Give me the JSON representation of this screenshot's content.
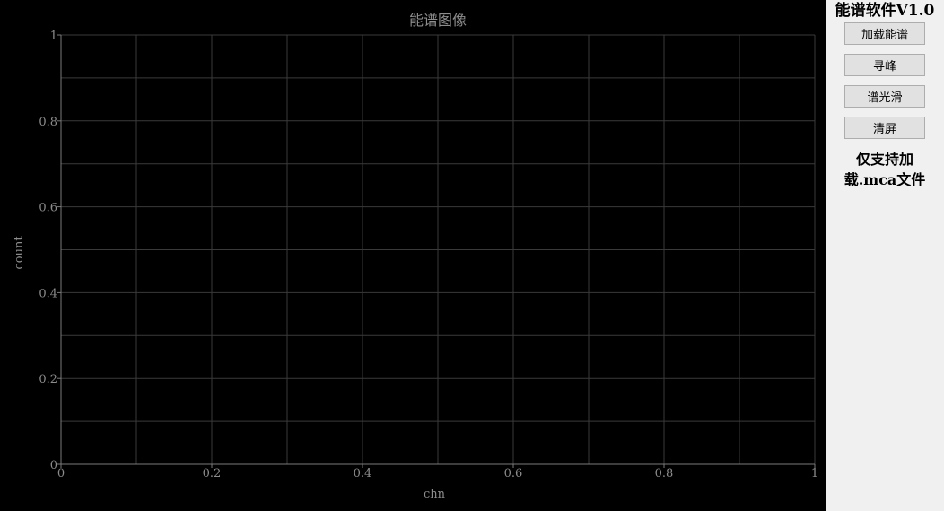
{
  "app": {
    "title": "能谱软件V1.0",
    "note_line1": "仅支持加",
    "note_line2": "载.mca文件"
  },
  "buttons": {
    "load": "加载能谱",
    "find_peak": "寻峰",
    "smooth": "谱光滑",
    "clear": "清屏"
  },
  "chart_data": {
    "type": "line",
    "title": "能谱图像",
    "xlabel": "chn",
    "ylabel": "count",
    "xlim": [
      0,
      1
    ],
    "ylim": [
      0,
      1
    ],
    "xticks": [
      "0",
      "0.2",
      "0.4",
      "0.6",
      "0.8",
      "1"
    ],
    "yticks": [
      "0",
      "0.2",
      "0.4",
      "0.6",
      "0.8",
      "1"
    ],
    "grid": true,
    "series": []
  },
  "colors": {
    "plot_background": "#000000",
    "grid": "#3a3a3a",
    "text": "#8c8c8c",
    "panel": "#f0f0f0"
  }
}
